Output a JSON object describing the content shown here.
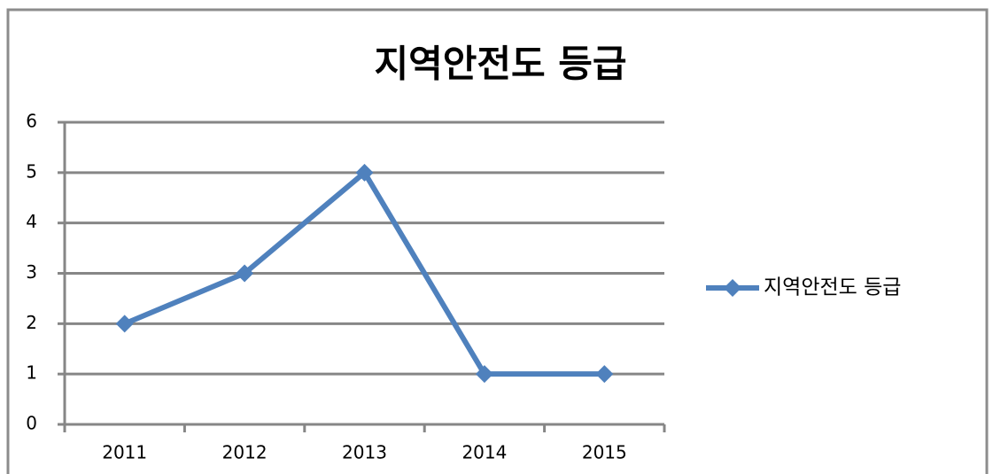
{
  "chart_data": {
    "type": "line",
    "title": "지역안전도 등급",
    "categories": [
      "2011",
      "2012",
      "2013",
      "2014",
      "2015"
    ],
    "series": [
      {
        "name": "지역안전도 등급",
        "color": "#4f81bd",
        "values": [
          2,
          3,
          5,
          1,
          1
        ]
      }
    ],
    "ylim": [
      0,
      6
    ],
    "yticks": [
      0,
      1,
      2,
      3,
      4,
      5,
      6
    ],
    "grid": true,
    "legend": "right"
  }
}
